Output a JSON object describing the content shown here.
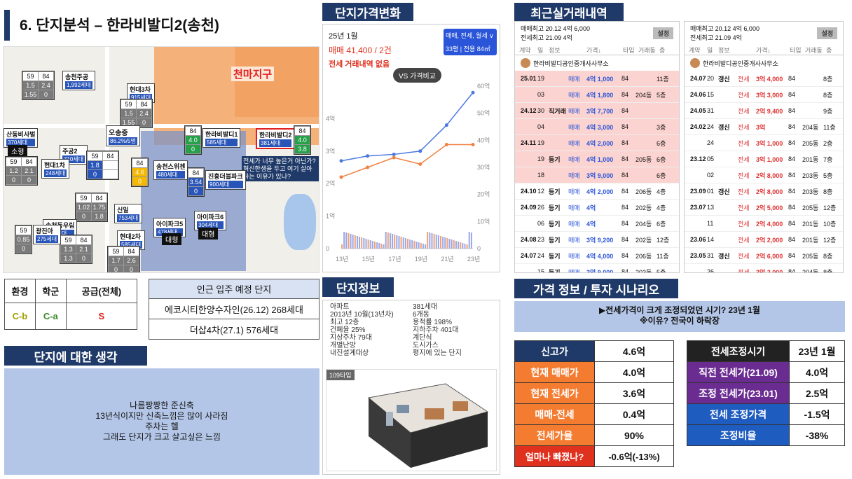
{
  "page": {
    "title": "6. 단지분석 – 한라비발디2(송천)"
  },
  "headers": {
    "price_change": "단지가격변화",
    "recent_deals": "최근실거래내역",
    "complex_info": "단지정보",
    "scenario": "가격 정보 / 투자 시나리오",
    "thoughts": "단지에 대한 생각"
  },
  "map": {
    "district_label": "천마지구",
    "note": "전세가 너무 높은거 아닌가? 혁신한생을 두고 여기 살아하는 이유가 있나?",
    "boxes": [
      {
        "name": "한라비발디2",
        "units": "381세대",
        "vals": [
          "84",
          "4.0",
          "3.8"
        ]
      },
      {
        "name": "한라비발디1",
        "units": "585세대",
        "vals": [
          "84",
          "4.0",
          "0"
        ]
      },
      {
        "name": "송천주공",
        "units": "1,992세대",
        "vals": [
          "59",
          "84",
          "1.5",
          "2.4",
          "1.55",
          "0"
        ]
      },
      {
        "name": "현대3차",
        "units": "915세대",
        "vals": [
          "59",
          "84",
          "1.5",
          "2.4",
          "1.55",
          "0"
        ]
      },
      {
        "name": "주공2",
        "units": "710세대",
        "vals": [
          "59",
          "84",
          "1.8",
          "0"
        ]
      },
      {
        "name": "현대1차",
        "units": "248세대",
        "vals": [
          "59",
          "84",
          "1.2",
          "2.1",
          "0",
          "0"
        ]
      },
      {
        "name": "송천스위첸",
        "units": "480세대",
        "vals": [
          "84",
          "4.6",
          "0"
        ]
      },
      {
        "name": "진흥더블파크",
        "units": "900세대",
        "vals": [
          "84",
          "3.54",
          "0"
        ]
      },
      {
        "name": "신일",
        "units": "753세대",
        "vals": [
          "59",
          "84",
          "1.02",
          "1.75",
          "0",
          "1.8"
        ]
      },
      {
        "name": "송천동우림",
        "units": "417세대",
        "vals": [
          "59",
          "84",
          "1.3",
          "2.1",
          "1.3",
          "0"
        ]
      },
      {
        "name": "현대2차",
        "units": "585세대",
        "vals": [
          "59",
          "84",
          "1.7",
          "2.6",
          "0",
          "0"
        ]
      },
      {
        "name": "광진아",
        "units": "275세대",
        "vals": [
          "59",
          "0.85",
          "0"
        ]
      },
      {
        "name": "아이파크5",
        "units": "478세대",
        "vals": []
      },
      {
        "name": "아이파크6",
        "units": "304세대",
        "vals": []
      },
      {
        "name": "산동비사벌",
        "units": "370세대",
        "vals": []
      }
    ],
    "tags": [
      "대형",
      "대형",
      "소형",
      "오송중",
      "86.2%/5명"
    ]
  },
  "ratings": {
    "headers": [
      "환경",
      "학군",
      "공급(전체)"
    ],
    "values": [
      "C-b",
      "C-a",
      "S"
    ]
  },
  "upcoming": {
    "title": "인근 입주 예정 단지",
    "items": [
      "에코시티한양수자인(26.12) 268세대",
      "더샵4차(27.1) 576세대"
    ]
  },
  "thoughts": {
    "lines": [
      "나름짱짱한 준신축",
      "13년식이지만 신축느낌은 많이 사라짐",
      "주차는 헬",
      "그래도 단지가 크고 살고싶은 느낌"
    ]
  },
  "price_chart": {
    "period": "25년 1월",
    "sale": "매매 41,400 / 2건",
    "rent": "전세 거래내역 없음",
    "filter": "매매, 전세, 월세 ∨",
    "size": "33평 | 전용 84㎡",
    "compare": "VS 가격비교",
    "y_left": [
      "4억",
      "3억",
      "2억",
      "1억",
      "0"
    ],
    "y_right": [
      "60억",
      "50억",
      "40억",
      "30억",
      "20억",
      "10억",
      "0"
    ],
    "x": [
      "13년",
      "15년",
      "17년",
      "19년",
      "21년",
      "23년"
    ]
  },
  "chart_data": {
    "type": "line",
    "x": [
      "13년",
      "15년",
      "17년",
      "19년",
      "21년",
      "23년"
    ],
    "series": [
      {
        "name": "매매",
        "values": [
          2.7,
          2.85,
          2.9,
          3.0,
          3.8,
          4.8
        ]
      },
      {
        "name": "전세",
        "values": [
          2.2,
          2.5,
          2.8,
          2.6,
          3.2,
          3.2
        ]
      }
    ],
    "ylim": [
      0,
      5
    ]
  },
  "deals_left": {
    "header1": "매매최고 20.12  4억 6,000",
    "header2": "전세최고 21.09  4억",
    "button": "설정",
    "cols": [
      "계약",
      "일",
      "정보",
      "가격↓",
      "타입",
      "거래동",
      "층"
    ],
    "agent": "한라비발디공인중개사사무소",
    "rows": [
      {
        "ym": "25.01",
        "d": "19",
        "info": "",
        "type": "매매",
        "price": "4억 1,000",
        "t": "84",
        "dong": "",
        "fl": "11층",
        "pink": true
      },
      {
        "ym": "",
        "d": "03",
        "info": "",
        "type": "매매",
        "price": "4억 1,800",
        "t": "84",
        "dong": "204동",
        "fl": "5층",
        "pink": true
      },
      {
        "ym": "24.12",
        "d": "30",
        "info": "직거래",
        "type": "매매",
        "price": "3억 7,700",
        "t": "84",
        "dong": "",
        "fl": "",
        "pink": true
      },
      {
        "ym": "",
        "d": "04",
        "info": "",
        "type": "매매",
        "price": "4억 3,000",
        "t": "84",
        "dong": "",
        "fl": "3층",
        "pink": true
      },
      {
        "ym": "24.11",
        "d": "19",
        "info": "",
        "type": "매매",
        "price": "4억 2,000",
        "t": "84",
        "dong": "",
        "fl": "6층",
        "pink": true
      },
      {
        "ym": "",
        "d": "19",
        "info": "등기",
        "type": "매매",
        "price": "4억 1,000",
        "t": "84",
        "dong": "205동",
        "fl": "6층",
        "pink": true
      },
      {
        "ym": "",
        "d": "18",
        "info": "",
        "type": "매매",
        "price": "3억 9,000",
        "t": "84",
        "dong": "",
        "fl": "6층",
        "pink": true
      },
      {
        "ym": "24.10",
        "d": "12",
        "info": "등기",
        "type": "매매",
        "price": "4억 2,000",
        "t": "84",
        "dong": "206동",
        "fl": "4층",
        "pink": false
      },
      {
        "ym": "24.09",
        "d": "26",
        "info": "등기",
        "type": "매매",
        "price": "4억",
        "t": "84",
        "dong": "202동",
        "fl": "4층",
        "pink": false
      },
      {
        "ym": "",
        "d": "06",
        "info": "등기",
        "type": "매매",
        "price": "4억",
        "t": "84",
        "dong": "204동",
        "fl": "6층",
        "pink": false
      },
      {
        "ym": "24.08",
        "d": "23",
        "info": "등기",
        "type": "매매",
        "price": "3억 9,200",
        "t": "84",
        "dong": "202동",
        "fl": "12층",
        "pink": false
      },
      {
        "ym": "24.07",
        "d": "24",
        "info": "등기",
        "type": "매매",
        "price": "4억 4,000",
        "t": "84",
        "dong": "206동",
        "fl": "11층",
        "pink": false
      },
      {
        "ym": "",
        "d": "15",
        "info": "등기",
        "type": "매매",
        "price": "3억 9,000",
        "t": "84",
        "dong": "203동",
        "fl": "5층",
        "pink": false
      }
    ]
  },
  "deals_right": {
    "header1": "매매최고 20.12  4억 6,000",
    "header2": "전세최고 21.09  4억",
    "button": "설정",
    "cols": [
      "계약",
      "일",
      "정보",
      "가격↓",
      "타입",
      "거래동",
      "층"
    ],
    "agent": "한라비발디공인중개사사무소",
    "rows": [
      {
        "ym": "24.07",
        "d": "20",
        "info": "갱신",
        "type": "전세",
        "price": "3억 4,000",
        "t": "84",
        "dong": "",
        "fl": "8층"
      },
      {
        "ym": "24.06",
        "d": "15",
        "info": "",
        "type": "전세",
        "price": "3억 3,000",
        "t": "84",
        "dong": "",
        "fl": "8층"
      },
      {
        "ym": "24.05",
        "d": "31",
        "info": "",
        "type": "전세",
        "price": "2억 9,400",
        "t": "84",
        "dong": "",
        "fl": "9층"
      },
      {
        "ym": "24.02",
        "d": "24",
        "info": "갱신",
        "type": "전세",
        "price": "3억",
        "t": "84",
        "dong": "204동",
        "fl": "11층"
      },
      {
        "ym": "",
        "d": "24",
        "info": "",
        "type": "전세",
        "price": "3억 1,000",
        "t": "84",
        "dong": "205동",
        "fl": "2층"
      },
      {
        "ym": "23.12",
        "d": "05",
        "info": "",
        "type": "전세",
        "price": "3억 1,000",
        "t": "84",
        "dong": "201동",
        "fl": "7층"
      },
      {
        "ym": "",
        "d": "02",
        "info": "",
        "type": "전세",
        "price": "2억 8,000",
        "t": "84",
        "dong": "203동",
        "fl": "5층"
      },
      {
        "ym": "23.09",
        "d": "01",
        "info": "갱신",
        "type": "전세",
        "price": "2억 8,000",
        "t": "84",
        "dong": "203동",
        "fl": "8층"
      },
      {
        "ym": "23.07",
        "d": "13",
        "info": "",
        "type": "전세",
        "price": "2억 5,000",
        "t": "84",
        "dong": "205동",
        "fl": "12층"
      },
      {
        "ym": "",
        "d": "11",
        "info": "",
        "type": "전세",
        "price": "2억 4,000",
        "t": "84",
        "dong": "201동",
        "fl": "10층"
      },
      {
        "ym": "23.06",
        "d": "14",
        "info": "",
        "type": "전세",
        "price": "2억 2,000",
        "t": "84",
        "dong": "201동",
        "fl": "12층"
      },
      {
        "ym": "23.05",
        "d": "31",
        "info": "갱신",
        "type": "전세",
        "price": "2억 6,000",
        "t": "84",
        "dong": "205동",
        "fl": "8층"
      },
      {
        "ym": "",
        "d": "26",
        "info": "",
        "type": "전세",
        "price": "3억 2,000",
        "t": "84",
        "dong": "204동",
        "fl": "8층"
      }
    ]
  },
  "complex_info": {
    "left": [
      "아파트",
      "2013년 10월(13년차)",
      "최고 12층",
      "건폐율 25%",
      "지상주차 79대",
      "개별난방",
      "내진설계대상"
    ],
    "right": [
      "381세대",
      "6개동",
      "용적률 198%",
      "지하주차 401대",
      "계단식",
      "도시가스",
      "평지에 있는 단지"
    ],
    "type_label": "109타입"
  },
  "scenario": {
    "question": "▶전세가격이 크게 조정되었던 시기? 23년 1월",
    "reason": "※이유? 전국이 하락장",
    "left": [
      {
        "label": "신고가",
        "value": "4.6억"
      },
      {
        "label": "현재 매매가",
        "value": "4.0억"
      },
      {
        "label": "현재 전세가",
        "value": "3.6억"
      },
      {
        "label": "매매-전세",
        "value": "0.4억"
      },
      {
        "label": "전세가율",
        "value": "90%"
      },
      {
        "label": "얼마나 빠졌나?",
        "value": "-0.6억(-13%)"
      }
    ],
    "right": [
      {
        "label": "전세조정시기",
        "value": "23년 1월"
      },
      {
        "label": "직전 전세가(21.09)",
        "value": "4.0억"
      },
      {
        "label": "조정 전세가(23.01)",
        "value": "2.5억"
      },
      {
        "label": "전세 조정가격",
        "value": "-1.5억"
      },
      {
        "label": "조정비율",
        "value": "-38%"
      }
    ]
  }
}
